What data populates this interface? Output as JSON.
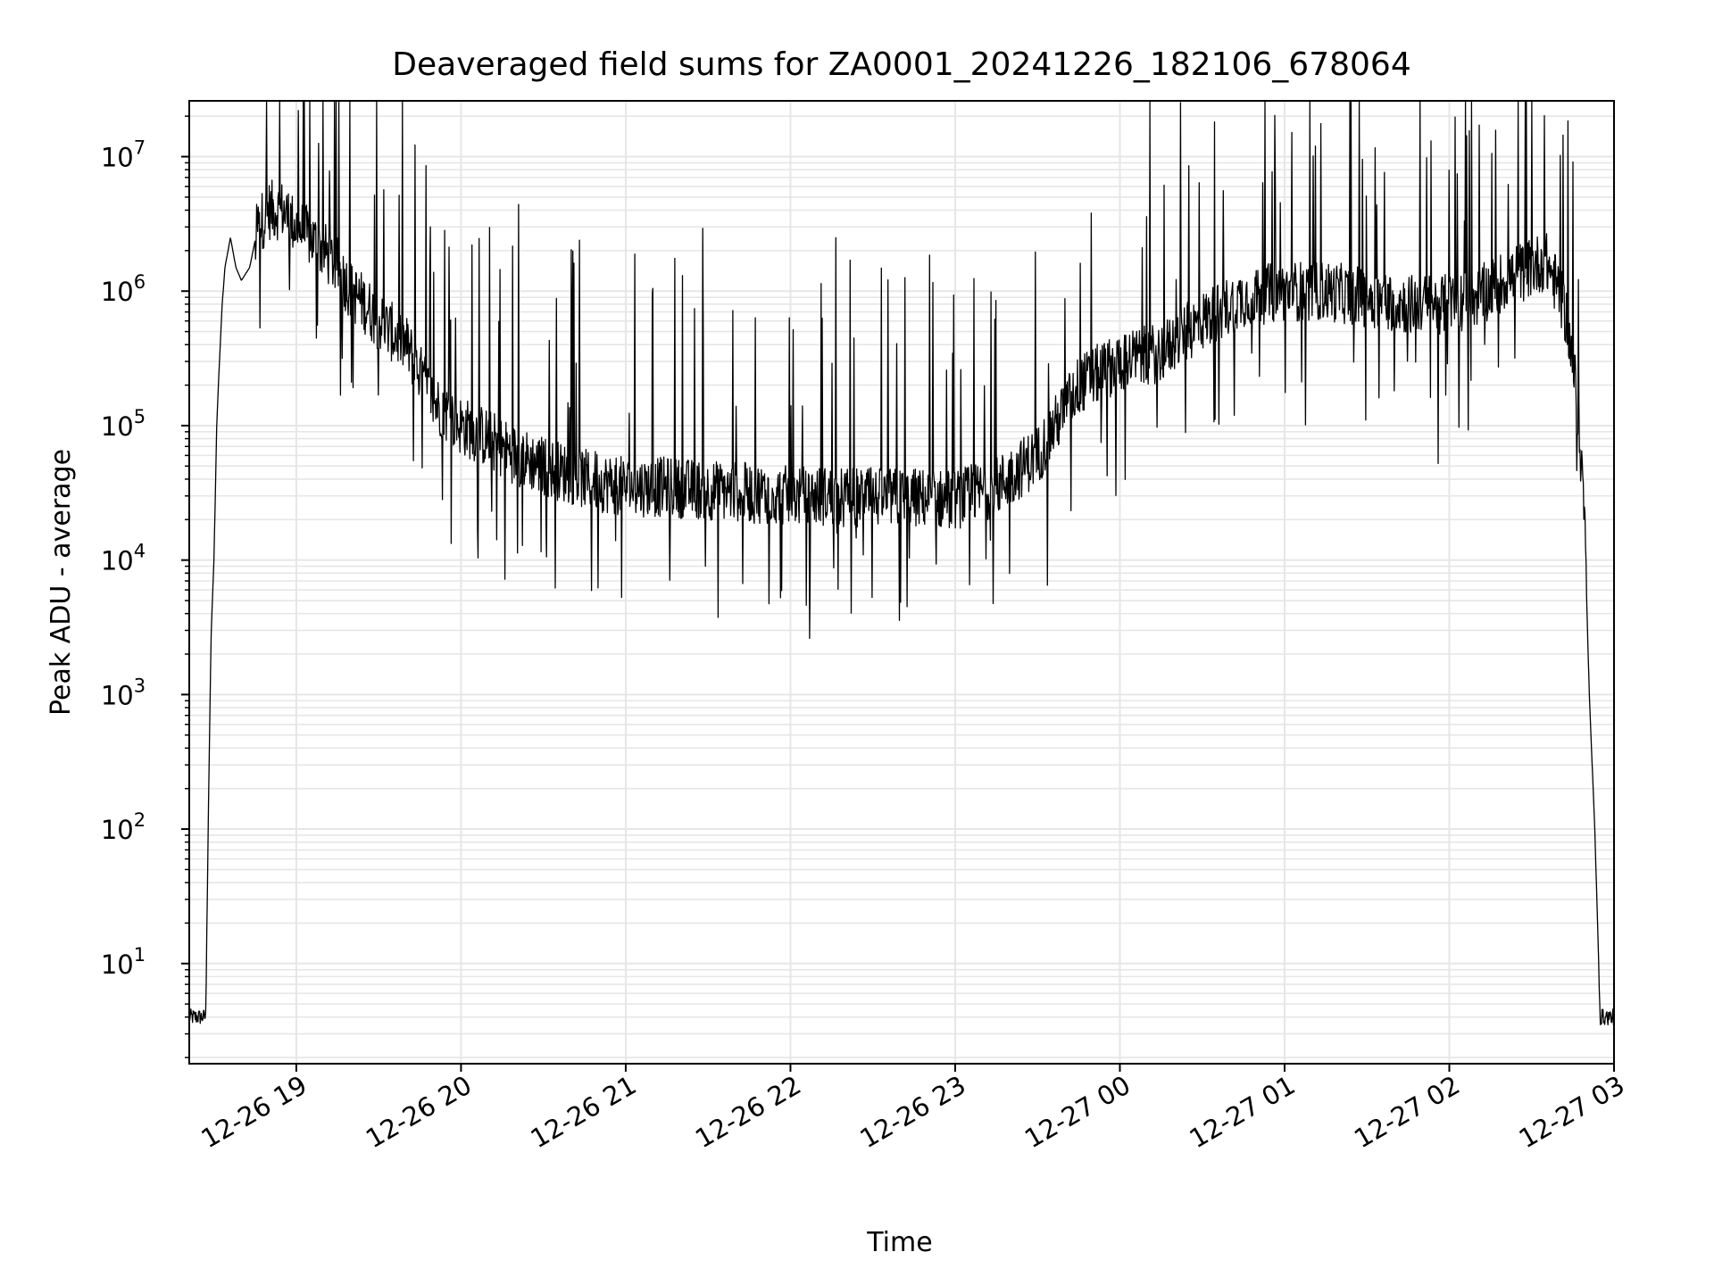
{
  "chart_data": {
    "type": "line",
    "title": "Deaveraged field sums for ZA0001_20241226_182106_678064",
    "xlabel": "Time",
    "ylabel": "Peak ADU - average",
    "y_scale": "log",
    "ylim": [
      1.8,
      26000000
    ],
    "xlim": [
      "2024-12-26 18:21",
      "2024-12-27 03:00"
    ],
    "x_ticks": [
      "12-26 19",
      "12-26 20",
      "12-26 21",
      "12-26 22",
      "12-26 23",
      "12-27 00",
      "12-27 01",
      "12-27 02",
      "12-27 03"
    ],
    "y_ticks": [
      {
        "value": 10,
        "base": "10",
        "exp": "1"
      },
      {
        "value": 100,
        "base": "10",
        "exp": "2"
      },
      {
        "value": 1000,
        "base": "10",
        "exp": "3"
      },
      {
        "value": 10000,
        "base": "10",
        "exp": "4"
      },
      {
        "value": 100000,
        "base": "10",
        "exp": "5"
      },
      {
        "value": 1000000,
        "base": "10",
        "exp": "6"
      },
      {
        "value": 10000000,
        "base": "10",
        "exp": "7"
      }
    ],
    "grid": true,
    "line_color": "#000000",
    "grid_color": "#e6e6e6",
    "series": [
      {
        "x": [
          "2024-12-26 18:21",
          "2024-12-26 18:24",
          "2024-12-26 18:27",
          "2024-12-26 18:28",
          "2024-12-26 18:29",
          "2024-12-26 18:30",
          "2024-12-26 18:31",
          "2024-12-26 18:32",
          "2024-12-26 18:33",
          "2024-12-26 18:34",
          "2024-12-26 18:36",
          "2024-12-26 18:38",
          "2024-12-26 18:40",
          "2024-12-26 18:43",
          "2024-12-26 18:46",
          "2024-12-26 18:50",
          "2024-12-26 18:55",
          "2024-12-26 19:00",
          "2024-12-26 19:05",
          "2024-12-26 19:10",
          "2024-12-26 19:15",
          "2024-12-26 19:20",
          "2024-12-26 19:25",
          "2024-12-26 19:30",
          "2024-12-26 19:40",
          "2024-12-26 19:50",
          "2024-12-26 20:00",
          "2024-12-26 20:10",
          "2024-12-26 20:20",
          "2024-12-26 20:30",
          "2024-12-26 20:45",
          "2024-12-26 21:00",
          "2024-12-26 21:15",
          "2024-12-26 21:30",
          "2024-12-26 21:45",
          "2024-12-26 22:00",
          "2024-12-26 22:15",
          "2024-12-26 22:30",
          "2024-12-26 22:45",
          "2024-12-26 23:00",
          "2024-12-26 23:15",
          "2024-12-26 23:30",
          "2024-12-26 23:45",
          "2024-12-27 00:00",
          "2024-12-27 00:15",
          "2024-12-27 00:30",
          "2024-12-27 00:45",
          "2024-12-27 01:00",
          "2024-12-27 01:15",
          "2024-12-27 01:30",
          "2024-12-27 01:45",
          "2024-12-27 02:00",
          "2024-12-27 02:10",
          "2024-12-27 02:20",
          "2024-12-27 02:30",
          "2024-12-27 02:35",
          "2024-12-27 02:40",
          "2024-12-27 02:43",
          "2024-12-27 02:46",
          "2024-12-27 02:49",
          "2024-12-27 02:51",
          "2024-12-27 02:53",
          "2024-12-27 02:55",
          "2024-12-27 02:57",
          "2024-12-27 03:00"
        ],
        "y": [
          4,
          4,
          4,
          150,
          3000,
          10000,
          100000,
          300000,
          800000,
          1500000,
          2500000,
          1500000,
          1200000,
          1500000,
          3000000,
          4000000,
          4000000,
          3000000,
          2500000,
          2000000,
          1500000,
          1000000,
          800000,
          600000,
          400000,
          150000,
          100000,
          80000,
          60000,
          50000,
          40000,
          35000,
          35000,
          33000,
          32000,
          30000,
          30000,
          29000,
          29000,
          28000,
          35000,
          60000,
          200000,
          300000,
          350000,
          600000,
          900000,
          1000000,
          1000000,
          900000,
          800000,
          800000,
          900000,
          1200000,
          1500000,
          1700000,
          1000000,
          600000,
          200000,
          30000,
          1000,
          100,
          4,
          4,
          4
        ]
      }
    ]
  }
}
